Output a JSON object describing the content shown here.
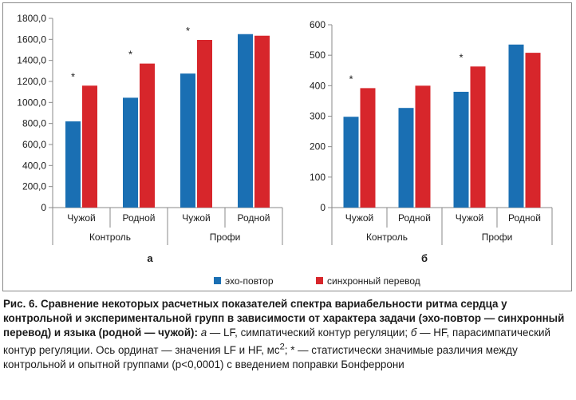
{
  "colors": {
    "series_echo": "#1a6fb3",
    "series_sync": "#d7262b",
    "axis": "#888888",
    "frame": "#8a8a8a"
  },
  "chart_data": [
    {
      "type": "bar",
      "panel_label": "а",
      "categories": [
        "Чужой",
        "Родной",
        "Чужой",
        "Родной"
      ],
      "groups": [
        {
          "label": "Контроль",
          "span": [
            0,
            1
          ]
        },
        {
          "label": "Профи",
          "span": [
            2,
            3
          ]
        }
      ],
      "series": [
        {
          "name": "эхо-повтор",
          "values": [
            820,
            1045,
            1275,
            1650
          ]
        },
        {
          "name": "синхронный перевод",
          "values": [
            1160,
            1370,
            1595,
            1635
          ]
        }
      ],
      "significance": [
        {
          "category": 0,
          "mark": "*"
        },
        {
          "category": 1,
          "mark": "*"
        },
        {
          "category": 2,
          "mark": "*"
        }
      ],
      "ylim": [
        0,
        1800
      ],
      "yticks": [
        "0",
        "200,0",
        "400,0",
        "600,0",
        "800,0",
        "1000,0",
        "1200,0",
        "1400,0",
        "1600,0",
        "1800,0"
      ],
      "ytick_values": [
        0,
        200,
        400,
        600,
        800,
        1000,
        1200,
        1400,
        1600,
        1800
      ],
      "grid": false
    },
    {
      "type": "bar",
      "panel_label": "б",
      "categories": [
        "Чужой",
        "Родной",
        "Чужой",
        "Родной"
      ],
      "groups": [
        {
          "label": "Контроль",
          "span": [
            0,
            1
          ]
        },
        {
          "label": "Профи",
          "span": [
            2,
            3
          ]
        }
      ],
      "series": [
        {
          "name": "эхо-повтор",
          "values": [
            298,
            327,
            380,
            535
          ]
        },
        {
          "name": "синхронный перевод",
          "values": [
            392,
            400,
            463,
            508
          ]
        }
      ],
      "significance": [
        {
          "category": 0,
          "mark": "*"
        },
        {
          "category": 2,
          "mark": "*"
        }
      ],
      "ylim": [
        0,
        600
      ],
      "yticks": [
        "0",
        "100",
        "200",
        "300",
        "400",
        "500",
        "600"
      ],
      "ytick_values": [
        0,
        100,
        200,
        300,
        400,
        500,
        600
      ],
      "grid": false
    }
  ],
  "legend": {
    "placement": "bottom-center",
    "items": [
      {
        "label": "эхо-повтор",
        "color": "#1a6fb3"
      },
      {
        "label": "синхронный перевод",
        "color": "#d7262b"
      }
    ]
  },
  "caption": {
    "title": "Рис. 6. Сравнение некоторых расчетных показателей спектра вариабельности ритма сердца у контрольной и экспериментальной групп в зависимости от характера задачи (эхо-повтор — синхронный перевод) и языка (родной — чужой):",
    "letter_a": "а",
    "text_a": " — LF, симпатический контур регуляции; ",
    "letter_b": "б",
    "text_b": " — HF, парасимпатический контур регуляции. Ось ординат — значения LF и HF, мс",
    "superscript": "2",
    "text_end": "; * — статистически значимые различия между контрольной и опытной группами (p<0,0001) с введением поправки Бонферрони"
  }
}
